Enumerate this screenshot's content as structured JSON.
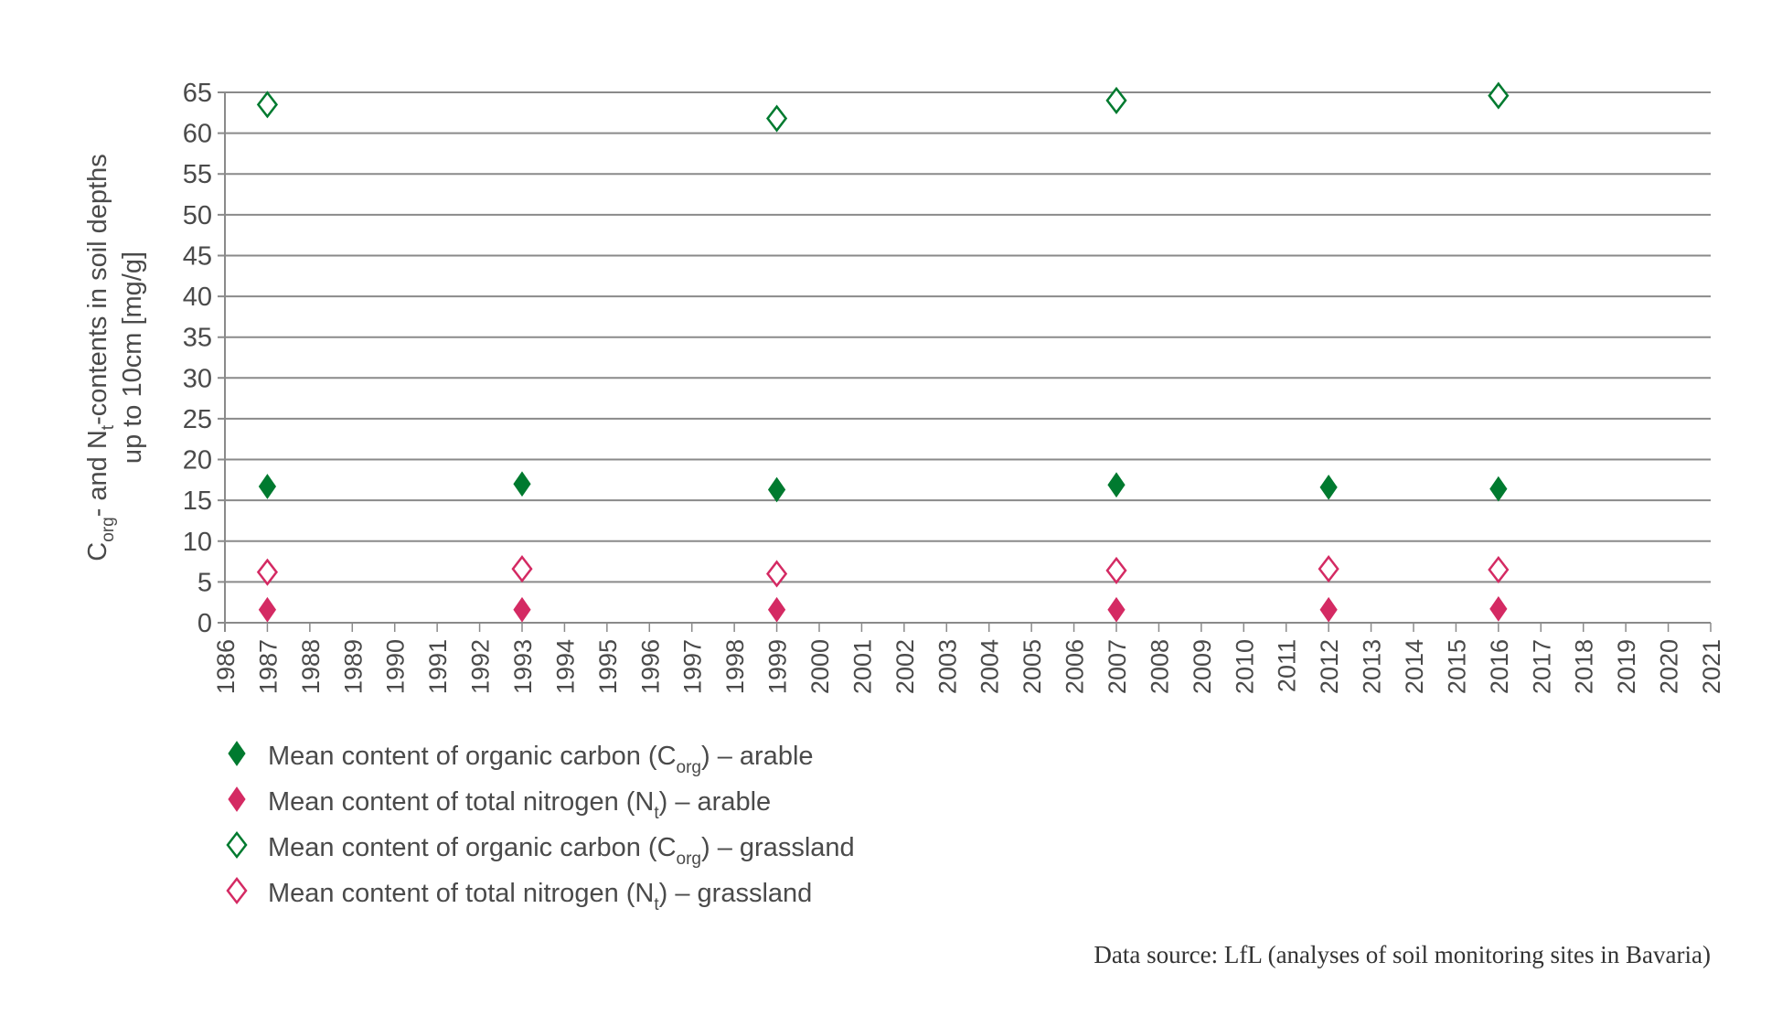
{
  "chart_data": {
    "type": "scatter",
    "ylabel_line1_parts": [
      "C",
      "org",
      "- and N",
      "t",
      "-contents in soil depths"
    ],
    "ylabel_line2": "up to 10cm [mg/g]",
    "xlim": [
      1986,
      2021
    ],
    "ylim": [
      0,
      65
    ],
    "ytick_step": 5,
    "xtick_step": 1,
    "grid": true,
    "legend_placement": "bottom-left",
    "series": [
      {
        "name_parts": [
          "Mean content of organic carbon  (C",
          "org",
          ") – arable"
        ],
        "color": "#007a2f",
        "filled": true,
        "x": [
          1987,
          1993,
          1999,
          2007,
          2012,
          2016
        ],
        "y": [
          16.7,
          17.0,
          16.3,
          16.9,
          16.6,
          16.4
        ]
      },
      {
        "name_parts": [
          "Mean content of total nitrogen (N",
          "t",
          ") – arable"
        ],
        "color": "#d42a63",
        "filled": true,
        "x": [
          1987,
          1993,
          1999,
          2007,
          2012,
          2016
        ],
        "y": [
          1.6,
          1.6,
          1.6,
          1.6,
          1.6,
          1.7
        ]
      },
      {
        "name_parts": [
          "Mean content of organic carbon (C",
          "org",
          ") – grassland"
        ],
        "color": "#007a2f",
        "filled": false,
        "x": [
          1987,
          1999,
          2007,
          2016
        ],
        "y": [
          63.5,
          61.8,
          64.0,
          64.6
        ]
      },
      {
        "name_parts": [
          "Mean content of total nitrogen (N",
          "t",
          ") – grassland"
        ],
        "color": "#d42a63",
        "filled": false,
        "x": [
          1987,
          1993,
          1999,
          2007,
          2012,
          2016
        ],
        "y": [
          6.2,
          6.6,
          6.0,
          6.4,
          6.6,
          6.5
        ]
      }
    ],
    "source": "Data source: LfL (analyses of soil monitoring sites in Bavaria)"
  }
}
